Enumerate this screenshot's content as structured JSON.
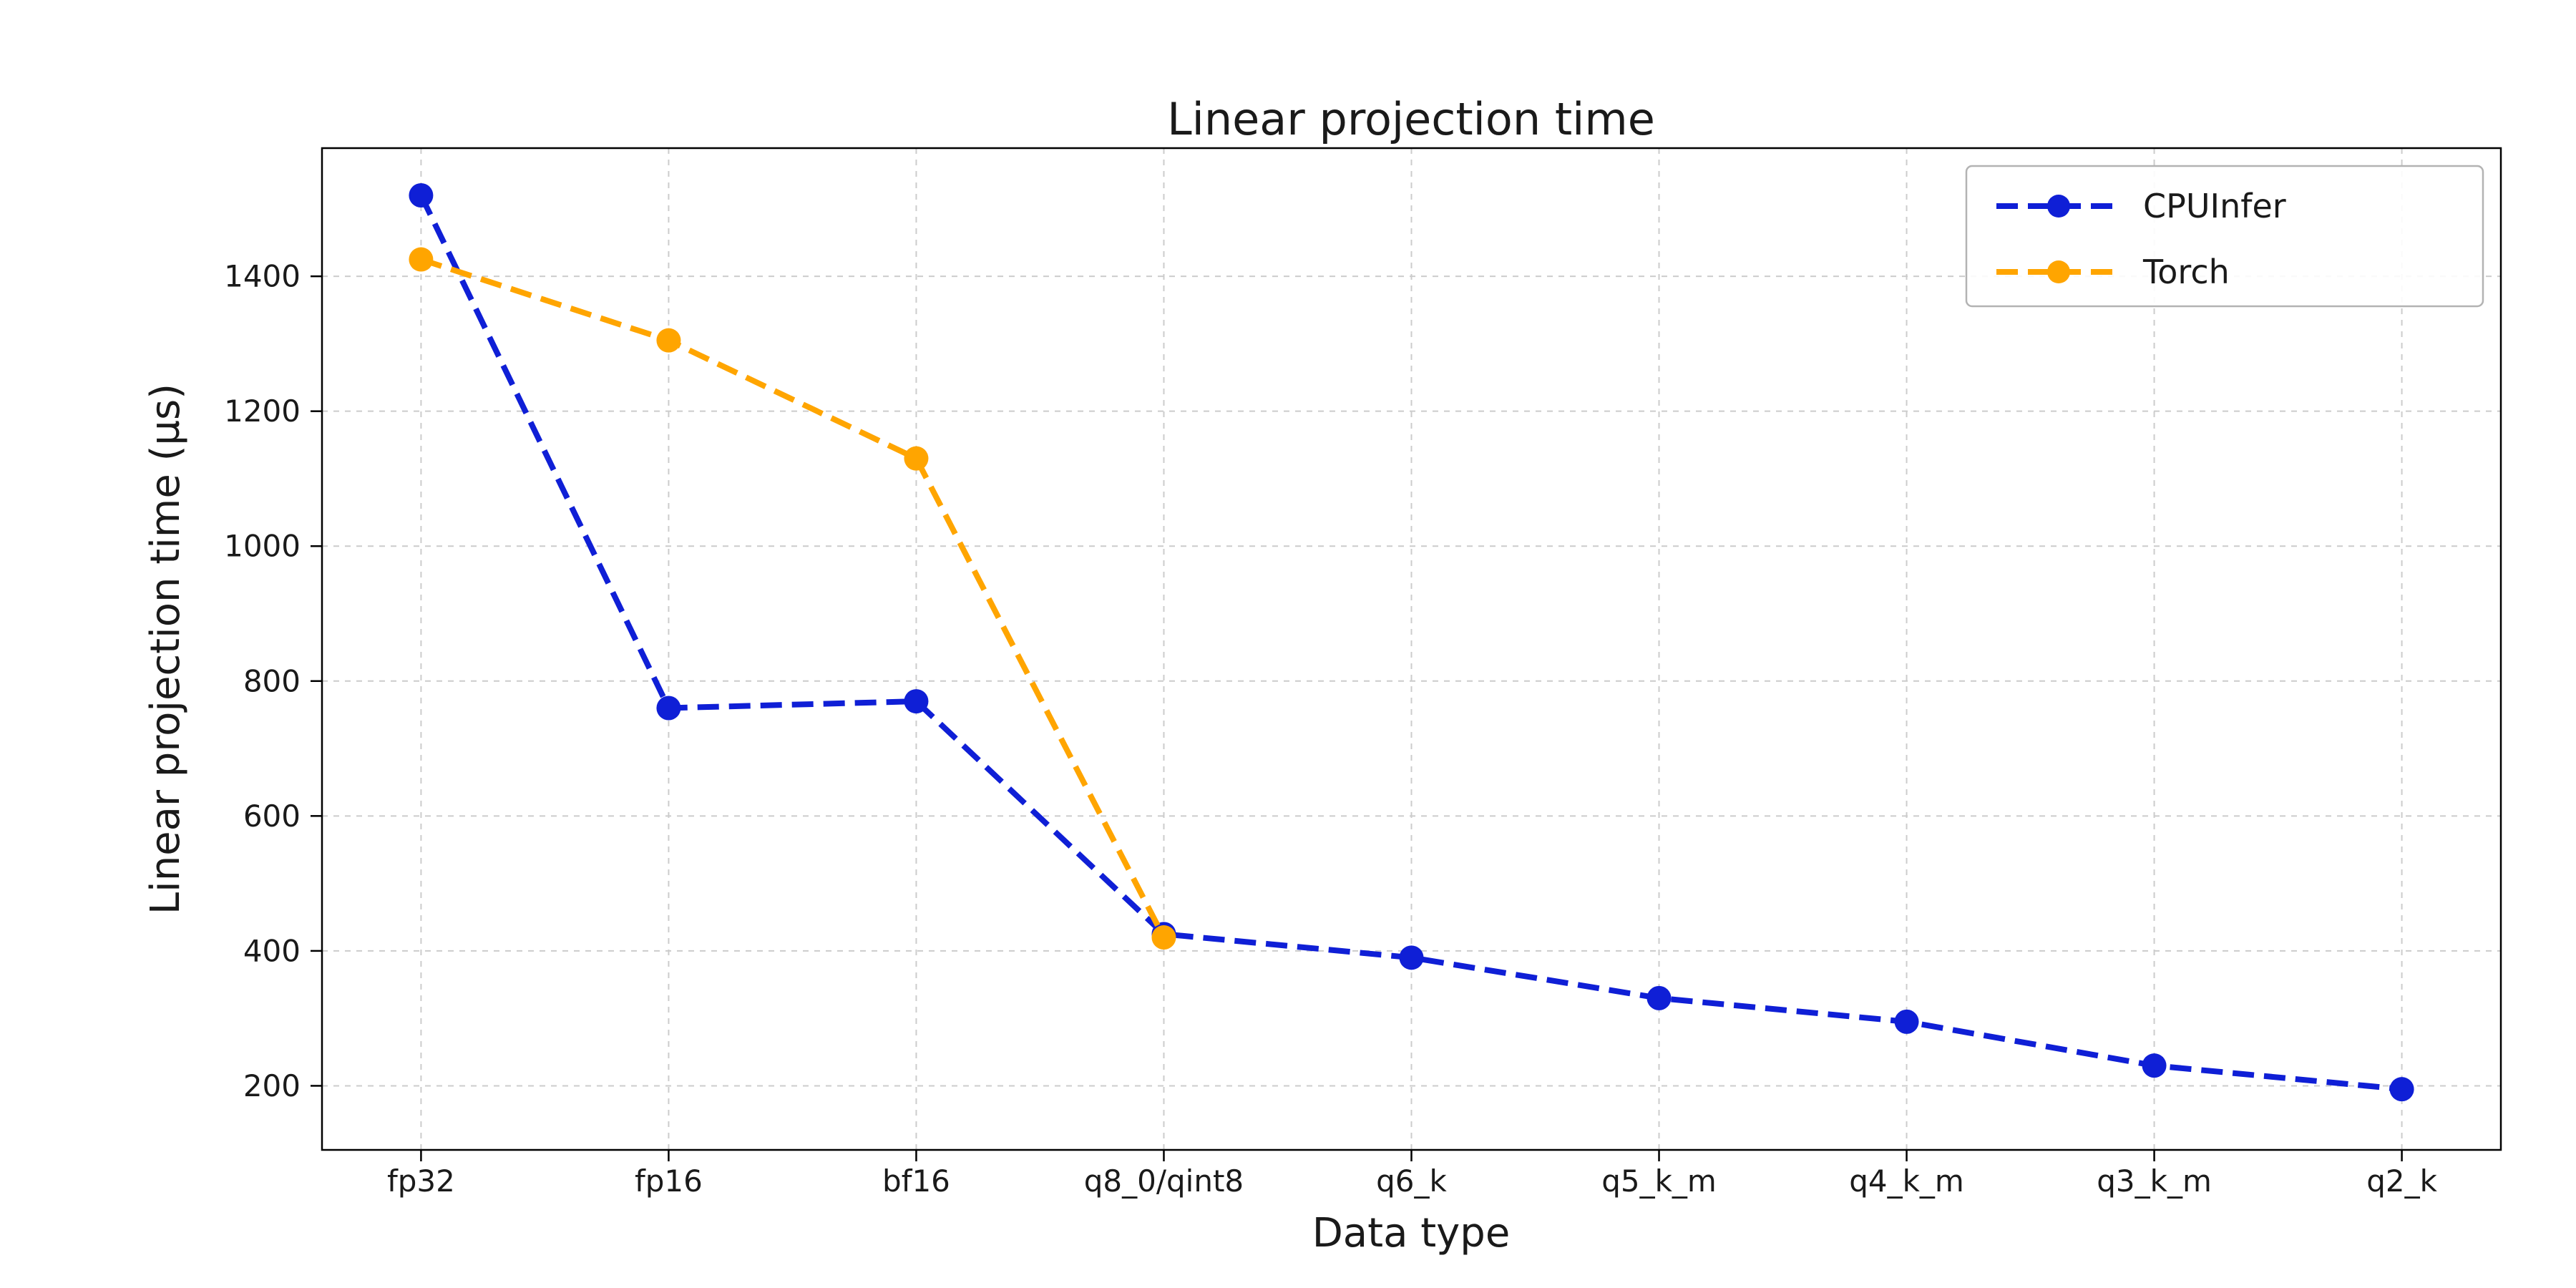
{
  "figure": {
    "title": "Linear projection time",
    "xlabel": "Data type",
    "ylabel": "Linear projection time (µs)"
  },
  "chart_data": {
    "type": "line",
    "title": "Linear projection time",
    "xlabel": "Data type",
    "ylabel": "Linear projection time (µs)",
    "categories": [
      "fp32",
      "fp16",
      "bf16",
      "q8_0/qint8",
      "q6_k",
      "q5_k_m",
      "q4_k_m",
      "q3_k_m",
      "q2_k"
    ],
    "series": [
      {
        "name": "CPUInfer",
        "color": "#0f1fd6",
        "values": [
          1520,
          760,
          770,
          425,
          390,
          330,
          295,
          230,
          195
        ]
      },
      {
        "name": "Torch",
        "color": "#ffa500",
        "values": [
          1425,
          1305,
          1130,
          420
        ]
      }
    ],
    "yticks": [
      200,
      400,
      600,
      800,
      1000,
      1200,
      1400
    ],
    "ylim": [
      105,
      1590
    ],
    "grid": true,
    "grid_color": "#cccccc",
    "line_style": "dashed",
    "marker": "circle",
    "legend_position": "upper right",
    "axis_color": "#000000"
  }
}
